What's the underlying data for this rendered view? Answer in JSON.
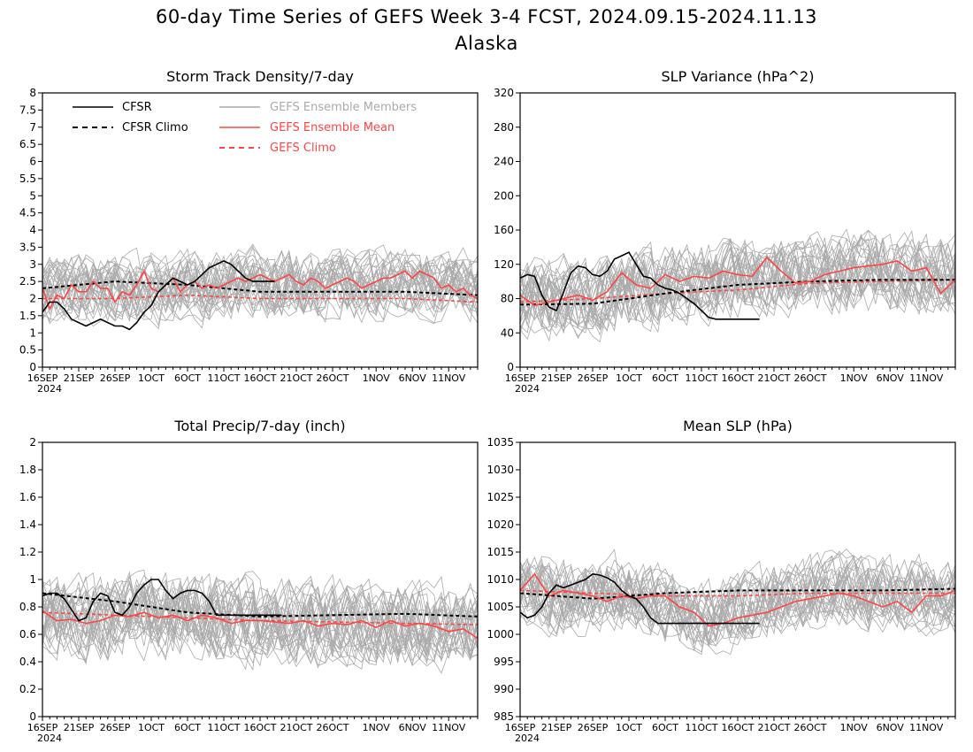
{
  "page": {
    "title_line1": "60-day Time Series of GEFS Week 3-4 FCST, 2024.09.15-2024.11.13",
    "title_line2": "Alaska"
  },
  "legend": {
    "cfsr": "CFSR",
    "cfsr_climo": "CFSR Climo",
    "gefs_members": "GEFS Ensemble Members",
    "gefs_mean": "GEFS Ensemble Mean",
    "gefs_climo": "GEFS Climo"
  },
  "colors": {
    "cfsr": "#000000",
    "members": "#aaaaaa",
    "mean": "#ff4444",
    "climo": "#ff4444"
  },
  "x_ticks": [
    "16SEP",
    "21SEP",
    "26SEP",
    "1OCT",
    "6OCT",
    "11OCT",
    "16OCT",
    "21OCT",
    "26OCT",
    "1NOV",
    "6NOV",
    "11NOV"
  ],
  "x_year": "2024",
  "chart_data": [
    {
      "type": "line",
      "title": "Storm Track Density/7-day",
      "ylim": [
        0,
        8
      ],
      "yticks": [
        "0",
        "0.5",
        "1",
        "1.5",
        "2",
        "2.5",
        "3",
        "3.5",
        "4",
        "4.5",
        "5",
        "5.5",
        "6",
        "6.5",
        "7",
        "7.5",
        "8"
      ],
      "ytick_values": [
        0,
        0.5,
        1,
        1.5,
        2,
        2.5,
        3,
        3.5,
        4,
        4.5,
        5,
        5.5,
        6,
        6.5,
        7,
        7.5,
        8
      ],
      "x_days": [
        0,
        2,
        4,
        6,
        8,
        10,
        12,
        14,
        16,
        18,
        20,
        22,
        24,
        26,
        28,
        30,
        32,
        34,
        36,
        38,
        40,
        42,
        44,
        46,
        48,
        50,
        52,
        54,
        56,
        58,
        60
      ],
      "members_center": [
        2.2,
        2.3,
        2.3,
        2.3,
        2.3,
        2.4,
        2.3,
        2.4,
        2.3,
        2.3,
        2.4,
        2.3,
        2.4,
        2.4,
        2.5,
        2.4,
        2.4,
        2.5,
        2.4,
        2.3,
        2.4,
        2.4,
        2.3,
        2.4,
        2.4,
        2.5,
        2.5,
        2.4,
        2.4,
        2.4,
        2.3
      ],
      "members_spread": 0.9,
      "members_count": 30,
      "series": [
        {
          "name": "CFSR",
          "x_days": [
            0,
            1,
            2,
            3,
            4,
            5,
            6,
            7,
            8,
            9,
            10,
            11,
            12,
            13,
            14,
            15,
            16,
            17,
            18,
            19,
            20,
            21,
            22,
            23,
            24,
            25,
            26,
            27,
            28,
            29,
            30,
            31,
            32
          ],
          "values": [
            1.6,
            1.9,
            1.9,
            1.7,
            1.4,
            1.3,
            1.2,
            1.3,
            1.4,
            1.3,
            1.2,
            1.2,
            1.1,
            1.3,
            1.6,
            1.8,
            2.2,
            2.4,
            2.6,
            2.5,
            2.4,
            2.5,
            2.7,
            2.9,
            3.0,
            3.1,
            3.0,
            2.8,
            2.6,
            2.5,
            2.5,
            2.5,
            2.5
          ]
        },
        {
          "name": "CFSR Climo",
          "x_days": [
            0,
            10,
            20,
            30,
            40,
            50,
            60
          ],
          "values": [
            2.3,
            2.5,
            2.4,
            2.2,
            2.2,
            2.2,
            2.1
          ]
        },
        {
          "name": "GEFS Ensemble Mean",
          "x_days": [
            0,
            1,
            2,
            3,
            4,
            5,
            6,
            7,
            8,
            9,
            10,
            11,
            12,
            13,
            14,
            15,
            16,
            17,
            18,
            19,
            20,
            21,
            22,
            23,
            24,
            25,
            26,
            27,
            28,
            29,
            30,
            31,
            32,
            33,
            34,
            35,
            36,
            37,
            38,
            39,
            40,
            41,
            42,
            43,
            44,
            45,
            46,
            47,
            48,
            49,
            50,
            51,
            52,
            53,
            54,
            55,
            56,
            57,
            58,
            59,
            60
          ],
          "values": [
            2.3,
            1.7,
            2.1,
            2.0,
            2.4,
            2.2,
            2.2,
            2.5,
            2.3,
            2.3,
            1.9,
            2.2,
            2.1,
            2.4,
            2.8,
            2.3,
            2.2,
            2.4,
            2.6,
            2.2,
            2.4,
            2.5,
            2.3,
            2.4,
            2.3,
            2.4,
            2.5,
            2.6,
            2.5,
            2.6,
            2.7,
            2.6,
            2.5,
            2.6,
            2.7,
            2.5,
            2.4,
            2.6,
            2.5,
            2.3,
            2.4,
            2.5,
            2.6,
            2.5,
            2.3,
            2.4,
            2.5,
            2.6,
            2.6,
            2.7,
            2.8,
            2.6,
            2.8,
            2.7,
            2.6,
            2.3,
            2.4,
            2.2,
            2.3,
            2.1,
            2.0
          ]
        },
        {
          "name": "GEFS Climo",
          "x_days": [
            0,
            10,
            20,
            30,
            40,
            50,
            60
          ],
          "values": [
            2.0,
            2.0,
            2.1,
            2.0,
            2.0,
            2.0,
            1.9
          ]
        }
      ]
    },
    {
      "type": "line",
      "title": "SLP Variance (hPa^2)",
      "ylim": [
        0,
        320
      ],
      "yticks": [
        "0",
        "40",
        "80",
        "120",
        "160",
        "200",
        "240",
        "280",
        "320"
      ],
      "ytick_values": [
        0,
        40,
        80,
        120,
        160,
        200,
        240,
        280,
        320
      ],
      "x_days": [
        0,
        2,
        4,
        6,
        8,
        10,
        12,
        14,
        16,
        18,
        20,
        22,
        24,
        26,
        28,
        30,
        32,
        34,
        36,
        38,
        40,
        42,
        44,
        46,
        48,
        50,
        52,
        54,
        56,
        58,
        60
      ],
      "members_center": [
        78,
        80,
        80,
        82,
        80,
        82,
        85,
        88,
        90,
        92,
        95,
        96,
        98,
        100,
        102,
        100,
        100,
        102,
        104,
        106,
        106,
        108,
        110,
        110,
        110,
        112,
        110,
        108,
        108,
        106,
        104
      ],
      "members_spread": 42,
      "members_count": 30,
      "series": [
        {
          "name": "CFSR",
          "x_days": [
            0,
            1,
            2,
            3,
            4,
            5,
            6,
            7,
            8,
            9,
            10,
            11,
            12,
            13,
            14,
            15,
            16,
            17,
            18,
            19,
            20,
            21,
            22,
            23,
            24,
            25,
            26,
            27,
            28,
            29,
            30,
            31,
            32,
            33
          ],
          "values": [
            104,
            108,
            106,
            84,
            70,
            66,
            88,
            110,
            118,
            116,
            108,
            106,
            112,
            126,
            130,
            134,
            120,
            106,
            104,
            96,
            92,
            90,
            86,
            80,
            74,
            66,
            58,
            56,
            56,
            56,
            56,
            56,
            56,
            56
          ]
        },
        {
          "name": "CFSR Climo",
          "x_days": [
            0,
            10,
            20,
            30,
            40,
            50,
            60
          ],
          "values": [
            73,
            74,
            86,
            96,
            100,
            102,
            102
          ]
        },
        {
          "name": "GEFS Ensemble Mean",
          "x_days": [
            0,
            2,
            4,
            6,
            8,
            10,
            12,
            14,
            16,
            18,
            20,
            22,
            24,
            26,
            28,
            30,
            32,
            34,
            36,
            38,
            40,
            42,
            44,
            46,
            48,
            50,
            52,
            54,
            56,
            58,
            60
          ],
          "values": [
            84,
            72,
            76,
            80,
            84,
            78,
            88,
            110,
            96,
            92,
            108,
            100,
            106,
            104,
            112,
            108,
            106,
            128,
            112,
            98,
            100,
            108,
            112,
            116,
            118,
            120,
            124,
            112,
            116,
            86,
            102
          ]
        },
        {
          "name": "GEFS Climo",
          "x_days": [
            0,
            10,
            20,
            30,
            40,
            50,
            60
          ],
          "values": [
            76,
            80,
            86,
            90,
            98,
            100,
            102
          ]
        }
      ]
    },
    {
      "type": "line",
      "title": "Total Precip/7-day (inch)",
      "ylim": [
        0,
        2
      ],
      "yticks": [
        "0",
        "0.2",
        "0.4",
        "0.6",
        "0.8",
        "1",
        "1.2",
        "1.4",
        "1.6",
        "1.8",
        "2"
      ],
      "ytick_values": [
        0,
        0.2,
        0.4,
        0.6,
        0.8,
        1,
        1.2,
        1.4,
        1.6,
        1.8,
        2
      ],
      "x_days": [
        0,
        2,
        4,
        6,
        8,
        10,
        12,
        14,
        16,
        18,
        20,
        22,
        24,
        26,
        28,
        30,
        32,
        34,
        36,
        38,
        40,
        42,
        44,
        46,
        48,
        50,
        52,
        54,
        56,
        58,
        60
      ],
      "members_center": [
        0.75,
        0.74,
        0.73,
        0.72,
        0.72,
        0.74,
        0.76,
        0.76,
        0.75,
        0.74,
        0.73,
        0.72,
        0.72,
        0.71,
        0.7,
        0.7,
        0.7,
        0.69,
        0.68,
        0.68,
        0.68,
        0.69,
        0.68,
        0.68,
        0.67,
        0.67,
        0.67,
        0.66,
        0.66,
        0.65,
        0.64
      ],
      "members_spread": 0.28,
      "members_count": 30,
      "series": [
        {
          "name": "CFSR",
          "x_days": [
            0,
            1,
            2,
            3,
            4,
            5,
            6,
            7,
            8,
            9,
            10,
            11,
            12,
            13,
            14,
            15,
            16,
            17,
            18,
            19,
            20,
            21,
            22,
            23,
            24,
            25,
            26,
            27,
            28,
            29,
            30,
            31,
            32,
            33
          ],
          "values": [
            0.88,
            0.9,
            0.9,
            0.86,
            0.78,
            0.7,
            0.72,
            0.84,
            0.9,
            0.88,
            0.76,
            0.74,
            0.8,
            0.9,
            0.96,
            1.0,
            1.0,
            0.92,
            0.86,
            0.9,
            0.92,
            0.92,
            0.9,
            0.84,
            0.74,
            0.74,
            0.74,
            0.74,
            0.74,
            0.74,
            0.74,
            0.74,
            0.74,
            0.74
          ]
        },
        {
          "name": "CFSR Climo",
          "x_days": [
            0,
            10,
            20,
            30,
            40,
            50,
            60
          ],
          "values": [
            0.9,
            0.84,
            0.76,
            0.73,
            0.74,
            0.75,
            0.73
          ]
        },
        {
          "name": "GEFS Ensemble Mean",
          "x_days": [
            0,
            2,
            4,
            6,
            8,
            10,
            12,
            14,
            16,
            18,
            20,
            22,
            24,
            26,
            28,
            30,
            32,
            34,
            36,
            38,
            40,
            42,
            44,
            46,
            48,
            50,
            52,
            54,
            56,
            58,
            60
          ],
          "values": [
            0.77,
            0.7,
            0.71,
            0.68,
            0.7,
            0.74,
            0.73,
            0.76,
            0.72,
            0.74,
            0.7,
            0.74,
            0.72,
            0.68,
            0.7,
            0.7,
            0.69,
            0.68,
            0.7,
            0.66,
            0.68,
            0.67,
            0.7,
            0.65,
            0.7,
            0.66,
            0.68,
            0.66,
            0.62,
            0.64,
            0.57
          ]
        },
        {
          "name": "GEFS Climo",
          "x_days": [
            0,
            10,
            20,
            30,
            40,
            50,
            60
          ],
          "values": [
            0.76,
            0.74,
            0.72,
            0.7,
            0.69,
            0.68,
            0.67
          ]
        }
      ]
    },
    {
      "type": "line",
      "title": "Mean SLP (hPa)",
      "ylim": [
        985,
        1035
      ],
      "yticks": [
        "985",
        "990",
        "995",
        "1000",
        "1005",
        "1010",
        "1015",
        "1020",
        "1025",
        "1030",
        "1035"
      ],
      "ytick_values": [
        985,
        990,
        995,
        1000,
        1005,
        1010,
        1015,
        1020,
        1025,
        1030,
        1035
      ],
      "x_days": [
        0,
        2,
        4,
        6,
        8,
        10,
        12,
        14,
        16,
        18,
        20,
        22,
        24,
        26,
        28,
        30,
        32,
        34,
        36,
        38,
        40,
        42,
        44,
        46,
        48,
        50,
        52,
        54,
        56,
        58,
        60
      ],
      "members_center": [
        1008,
        1008,
        1007,
        1007,
        1007,
        1007.5,
        1008,
        1007.5,
        1007,
        1006,
        1005,
        1004,
        1003,
        1003,
        1004,
        1005,
        1006,
        1006.5,
        1007,
        1007,
        1007.5,
        1008,
        1008,
        1007.5,
        1007,
        1007,
        1007,
        1007.5,
        1007,
        1007,
        1007
      ],
      "members_spread": 6,
      "members_count": 30,
      "series": [
        {
          "name": "CFSR",
          "x_days": [
            0,
            1,
            2,
            3,
            4,
            5,
            6,
            7,
            8,
            9,
            10,
            11,
            12,
            13,
            14,
            15,
            16,
            17,
            18,
            19,
            20,
            21,
            22,
            23,
            24,
            25,
            26,
            27,
            28,
            29,
            30,
            31,
            32,
            33
          ],
          "values": [
            1004,
            1003,
            1003.5,
            1005,
            1007.5,
            1009,
            1008.5,
            1009,
            1009.5,
            1010,
            1011,
            1010.8,
            1010.3,
            1009.5,
            1008,
            1007,
            1006.5,
            1005,
            1003,
            1002,
            1002,
            1002,
            1002,
            1002,
            1002,
            1002,
            1002,
            1002,
            1002,
            1002,
            1002,
            1002,
            1002,
            1002
          ]
        },
        {
          "name": "CFSR Climo",
          "x_days": [
            0,
            10,
            20,
            30,
            40,
            50,
            60
          ],
          "values": [
            1007.5,
            1006.5,
            1007.5,
            1008,
            1008,
            1008,
            1008.3
          ]
        },
        {
          "name": "GEFS Ensemble Mean",
          "x_days": [
            0,
            2,
            4,
            6,
            8,
            10,
            12,
            14,
            16,
            18,
            20,
            22,
            24,
            26,
            28,
            30,
            32,
            34,
            36,
            38,
            40,
            42,
            44,
            46,
            48,
            50,
            52,
            54,
            56,
            58,
            60
          ],
          "values": [
            1008,
            1011,
            1007,
            1008,
            1007.5,
            1007,
            1006,
            1007,
            1006.5,
            1007,
            1007,
            1005,
            1004,
            1001.5,
            1002,
            1003,
            1003.5,
            1004,
            1005,
            1006,
            1006.5,
            1007,
            1007.5,
            1007,
            1006,
            1005,
            1006,
            1004,
            1007,
            1007,
            1008
          ]
        },
        {
          "name": "GEFS Climo",
          "x_days": [
            0,
            10,
            20,
            30,
            40,
            50,
            60
          ],
          "values": [
            1008,
            1007.5,
            1007,
            1007,
            1007.5,
            1007.5,
            1007.5
          ]
        }
      ]
    }
  ]
}
